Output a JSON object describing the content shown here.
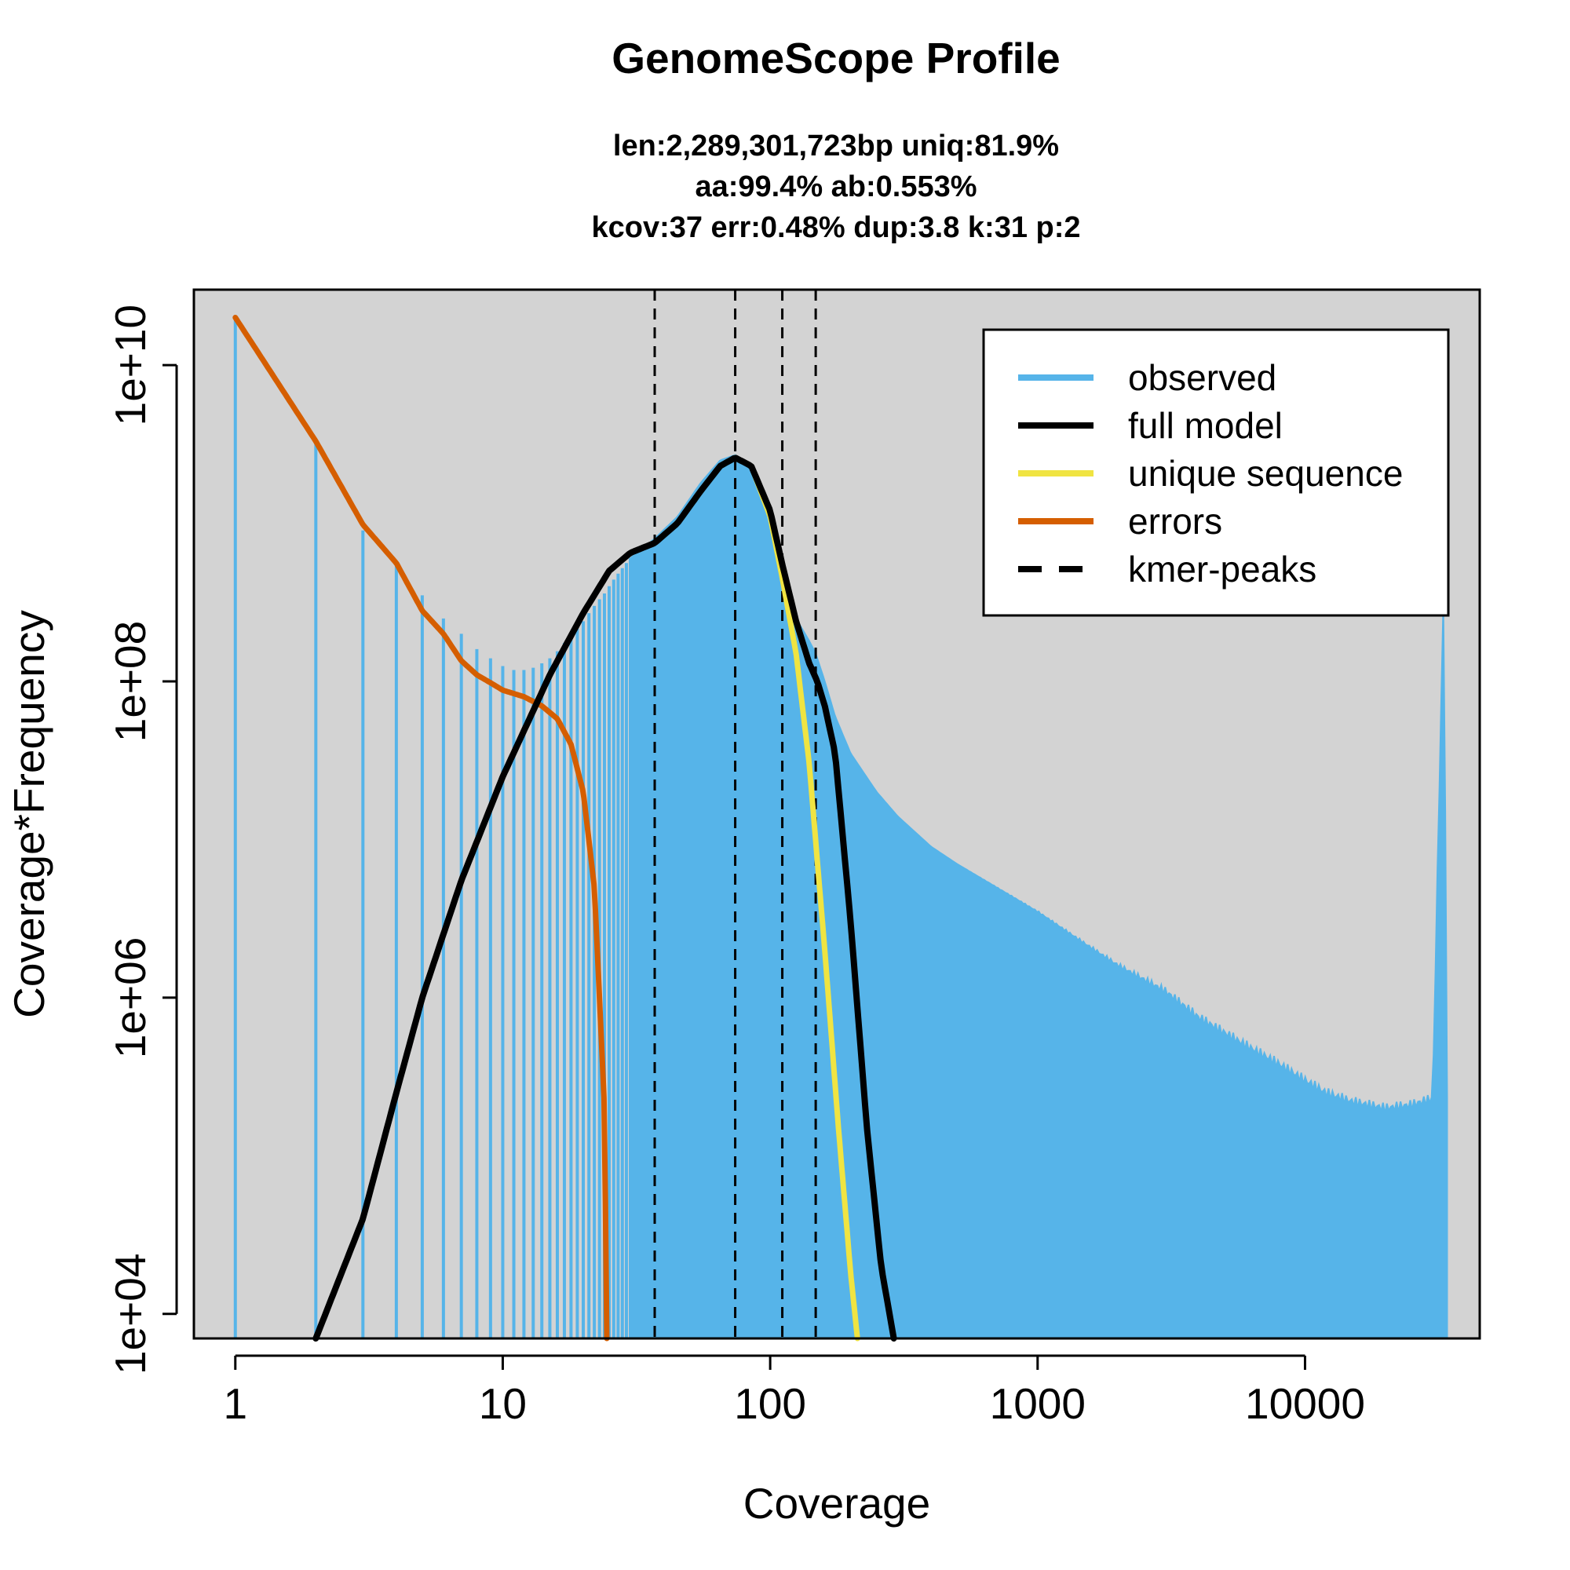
{
  "chart_data": {
    "type": "area",
    "title": "GenomeScope Profile",
    "subtitle_lines": [
      "len:2,289,301,723bp uniq:81.9%",
      "aa:99.4% ab:0.553%",
      "kcov:37 err:0.48%  dup:3.8  k:31 p:2"
    ],
    "xlabel": "Coverage",
    "ylabel": "Coverage*Frequency",
    "x_scale": "log",
    "y_scale": "log",
    "xlim": [
      0.7,
      45000
    ],
    "ylim": [
      7000,
      30000000000
    ],
    "x_ticks": [
      1,
      10,
      100,
      1000,
      10000
    ],
    "x_tick_labels": [
      "1",
      "10",
      "100",
      "1000",
      "10000"
    ],
    "y_ticks": [
      10000,
      1000000,
      100000000,
      10000000000
    ],
    "y_tick_labels": [
      "1e+04",
      "1e+06",
      "1e+08",
      "1e+10"
    ],
    "grid": false,
    "background": "#d3d3d3",
    "legend_position": "top-right",
    "legend": [
      {
        "label": "observed",
        "color": "#56b4e9",
        "style": "solid"
      },
      {
        "label": "full model",
        "color": "#000000",
        "style": "solid"
      },
      {
        "label": "unique sequence",
        "color": "#f0e442",
        "style": "solid"
      },
      {
        "label": "errors",
        "color": "#d55e00",
        "style": "solid"
      },
      {
        "label": "kmer-peaks",
        "color": "#000000",
        "style": "dashed"
      }
    ],
    "kmer_peaks": [
      37,
      74,
      111,
      148
    ],
    "observed": {
      "name": "observed",
      "color": "#56b4e9",
      "discrete_bars": {
        "x": [
          1,
          2,
          3,
          4,
          5,
          6,
          7,
          8,
          9,
          10,
          11,
          12,
          13,
          14,
          15,
          16,
          17,
          18,
          19,
          20,
          21,
          22,
          23,
          24,
          25,
          26,
          27,
          28,
          29,
          30
        ],
        "y": [
          20000000000,
          3200000000,
          900000000,
          550000000,
          350000000,
          250000000,
          200000000,
          160000000,
          140000000,
          125000000,
          118000000,
          118000000,
          122000000,
          130000000,
          140000000,
          155000000,
          175000000,
          195000000,
          215000000,
          240000000,
          270000000,
          300000000,
          330000000,
          360000000,
          400000000,
          440000000,
          480000000,
          520000000,
          560000000,
          600000000
        ]
      },
      "envelope": {
        "x": [
          30,
          37,
          45,
          55,
          65,
          74,
          85,
          100,
          111,
          125,
          140,
          148,
          160,
          175,
          200,
          250,
          300,
          400,
          500,
          700,
          1000,
          1500,
          2000,
          3000,
          4000,
          6000,
          8000,
          10000,
          12000,
          15000,
          20000,
          25000,
          30000,
          33000,
          34000
        ],
        "y": [
          600000000,
          800000000,
          1100000000,
          1800000000,
          2500000000,
          2700000000,
          2300000000,
          1000000000,
          500000000,
          250000000,
          180000000,
          150000000,
          100000000,
          60000000,
          35000000,
          20000000,
          14000000,
          9000000,
          7000000,
          5000000,
          3500000,
          2200000,
          1600000,
          1100000,
          750000,
          500000,
          380000,
          300000,
          250000,
          220000,
          200000,
          210000,
          230000,
          400000000,
          230000
        ]
      }
    },
    "full_model": {
      "name": "full model",
      "color": "#000000",
      "x": [
        2,
        3,
        4,
        5,
        7,
        10,
        15,
        20,
        25,
        30,
        37,
        45,
        55,
        65,
        74,
        85,
        100,
        111,
        125,
        140,
        150,
        160,
        175,
        200,
        230,
        260,
        290
      ],
      "y": [
        7000,
        40000,
        250000,
        1000000,
        5500000,
        25000000,
        110000000,
        270000000,
        500000000,
        650000000,
        750000000,
        1000000000,
        1600000000,
        2300000000,
        2600000000,
        2300000000,
        1200000000,
        550000000,
        240000000,
        130000000,
        100000000,
        70000000,
        35000000,
        3000000,
        150000,
        20000,
        7000
      ]
    },
    "unique_sequence": {
      "name": "unique sequence",
      "color": "#f0e442",
      "x": [
        20,
        25,
        30,
        37,
        45,
        55,
        65,
        74,
        85,
        100,
        111,
        125,
        140,
        160,
        180,
        200,
        212
      ],
      "y": [
        270000000,
        500000000,
        650000000,
        750000000,
        1000000000,
        1600000000,
        2300000000,
        2600000000,
        2300000000,
        1100000000,
        450000000,
        150000000,
        30000000,
        2000000,
        150000,
        18000,
        7000
      ]
    },
    "errors": {
      "name": "errors",
      "color": "#d55e00",
      "x": [
        1,
        2,
        3,
        4,
        5,
        6,
        7,
        8,
        9,
        10,
        12,
        14,
        16,
        18,
        20,
        22,
        23,
        24,
        24.5
      ],
      "y": [
        20000000000,
        3300000000,
        980000000,
        560000000,
        280000000,
        200000000,
        135000000,
        110000000,
        98000000,
        88000000,
        80000000,
        70000000,
        58000000,
        40000000,
        20000000,
        5000000,
        1000000,
        200000,
        7000
      ]
    }
  }
}
